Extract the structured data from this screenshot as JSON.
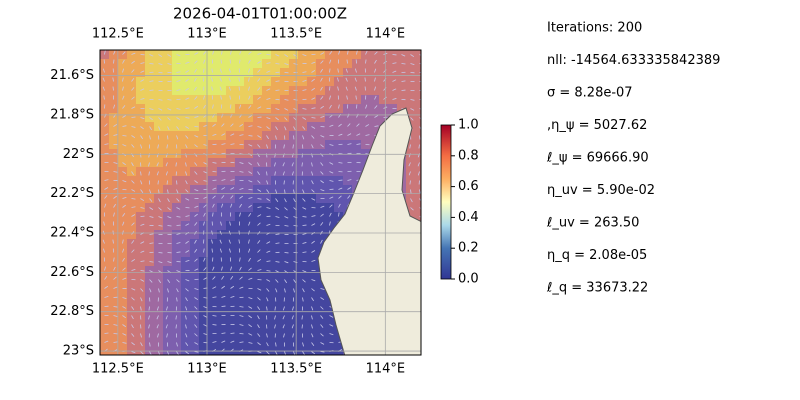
{
  "chart_data": {
    "type": "map",
    "title": "2026-04-01T01:00:00Z",
    "xlim": [
      112.4,
      114.2
    ],
    "xticks": [
      {
        "value": 112.5,
        "label": "112.5°E"
      },
      {
        "value": 113,
        "label": "113°E"
      },
      {
        "value": 113.5,
        "label": "113.5°E"
      },
      {
        "value": 114,
        "label": "114°E"
      }
    ],
    "ylim": [
      -23.02,
      -21.47
    ],
    "yticks": [
      {
        "value": -21.6,
        "label": "21.6°S"
      },
      {
        "value": -21.8,
        "label": "21.8°S"
      },
      {
        "value": -22,
        "label": "22°S"
      },
      {
        "value": -22.2,
        "label": "22.2°S"
      },
      {
        "value": -22.4,
        "label": "22.4°S"
      },
      {
        "value": -22.6,
        "label": "22.6°S"
      },
      {
        "value": -22.8,
        "label": "22.8°S"
      },
      {
        "value": -23,
        "label": "23°S"
      }
    ],
    "grid": true,
    "colorbar": {
      "lim": [
        0,
        1
      ],
      "ticks": [
        {
          "value": 0,
          "label": "0.0"
        },
        0.2,
        0.4,
        0.6,
        0.8,
        {
          "value": 1,
          "label": "1.0"
        }
      ]
    },
    "info_lines": [
      "Iterations: 200",
      "nll: -14564.633335842389",
      "σ = 8.28e-07",
      ",η_ψ = 5027.62",
      "ℓ_ψ = 69666.90",
      "η_uv = 5.90e-02",
      "ℓ_uv = 263.50",
      "η_q = 2.08e-05",
      "ℓ_q = 33673.22"
    ]
  }
}
